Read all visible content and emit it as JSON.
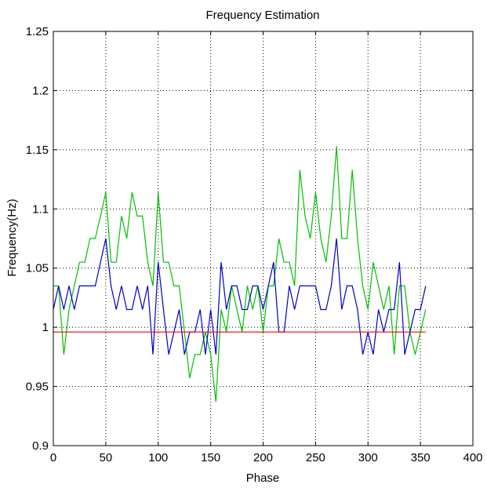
{
  "chart_data": {
    "type": "line",
    "title": "Frequency Estimation",
    "xlabel": "Phase",
    "ylabel": "Frequency(Hz)",
    "xlim": [
      0,
      400
    ],
    "ylim": [
      0.9,
      1.25
    ],
    "x_ticks": [
      0,
      50,
      100,
      150,
      200,
      250,
      300,
      350,
      400
    ],
    "x_tick_labels": [
      "0",
      "50",
      "100",
      "150",
      "200",
      "250",
      "300",
      "350",
      "400"
    ],
    "y_ticks": [
      0.9,
      0.95,
      1.0,
      1.05,
      1.1,
      1.15,
      1.2,
      1.25
    ],
    "y_tick_labels": [
      "0.9",
      "0.95",
      "1",
      "1.05",
      "1.1",
      "1.15",
      "1.2",
      "1.25"
    ],
    "grid": true,
    "grid_style": "dotted",
    "series": [
      {
        "color": "#00c000",
        "x": [
          0,
          5,
          10,
          15,
          20,
          25,
          30,
          35,
          40,
          45,
          50,
          55,
          60,
          65,
          70,
          75,
          80,
          85,
          90,
          95,
          100,
          105,
          110,
          115,
          120,
          125,
          130,
          135,
          140,
          145,
          150,
          155,
          160,
          165,
          170,
          175,
          180,
          185,
          190,
          195,
          200,
          205,
          210,
          215,
          220,
          225,
          230,
          235,
          240,
          245,
          250,
          255,
          260,
          265,
          270,
          275,
          280,
          285,
          290,
          295,
          300,
          305,
          310,
          315,
          320,
          325,
          330,
          335,
          340,
          345,
          350,
          355
        ],
        "y": [
          1.035,
          1.035,
          0.977,
          1.015,
          1.035,
          1.055,
          1.055,
          1.075,
          1.075,
          1.094,
          1.114,
          1.055,
          1.055,
          1.094,
          1.075,
          1.114,
          1.094,
          1.094,
          1.055,
          1.035,
          1.114,
          1.055,
          1.055,
          1.035,
          1.035,
          0.996,
          0.957,
          0.977,
          0.977,
          0.996,
          0.977,
          0.937,
          1.015,
          0.996,
          1.035,
          1.015,
          0.996,
          1.035,
          1.015,
          1.035,
          0.996,
          1.035,
          1.035,
          1.075,
          1.055,
          1.055,
          1.035,
          1.133,
          1.094,
          1.075,
          1.114,
          1.075,
          1.055,
          1.094,
          1.153,
          1.075,
          1.075,
          1.133,
          1.075,
          1.035,
          1.015,
          1.055,
          1.035,
          1.015,
          1.035,
          0.977,
          1.035,
          1.035,
          0.996,
          0.977,
          0.996,
          1.015
        ]
      },
      {
        "color": "#0000c0",
        "x": [
          0,
          5,
          10,
          15,
          20,
          25,
          30,
          35,
          40,
          45,
          50,
          55,
          60,
          65,
          70,
          75,
          80,
          85,
          90,
          95,
          100,
          105,
          110,
          115,
          120,
          125,
          130,
          135,
          140,
          145,
          150,
          155,
          160,
          165,
          170,
          175,
          180,
          185,
          190,
          195,
          200,
          205,
          210,
          215,
          220,
          225,
          230,
          235,
          240,
          245,
          250,
          255,
          260,
          265,
          270,
          275,
          280,
          285,
          290,
          295,
          300,
          305,
          310,
          315,
          320,
          325,
          330,
          335,
          340,
          345,
          350,
          355
        ],
        "y": [
          1.015,
          1.035,
          1.015,
          1.035,
          1.015,
          1.035,
          1.035,
          1.035,
          1.035,
          1.055,
          1.075,
          1.035,
          1.015,
          1.035,
          1.015,
          1.015,
          1.035,
          1.015,
          1.035,
          0.977,
          1.055,
          1.015,
          0.977,
          0.996,
          1.015,
          0.977,
          0.996,
          0.996,
          1.015,
          0.977,
          1.015,
          0.977,
          1.055,
          1.015,
          1.035,
          1.035,
          1.015,
          1.015,
          1.035,
          1.035,
          1.015,
          1.035,
          1.055,
          0.996,
          0.996,
          1.035,
          1.015,
          1.035,
          1.035,
          1.035,
          1.035,
          1.015,
          1.015,
          1.035,
          1.075,
          1.015,
          1.035,
          1.035,
          1.015,
          0.977,
          0.996,
          0.977,
          1.015,
          0.996,
          1.015,
          1.015,
          1.055,
          0.977,
          0.996,
          1.015,
          1.015,
          1.035
        ]
      },
      {
        "color": "#ff0000",
        "x": [
          0,
          355
        ],
        "y": [
          0.996,
          0.996
        ]
      }
    ]
  }
}
